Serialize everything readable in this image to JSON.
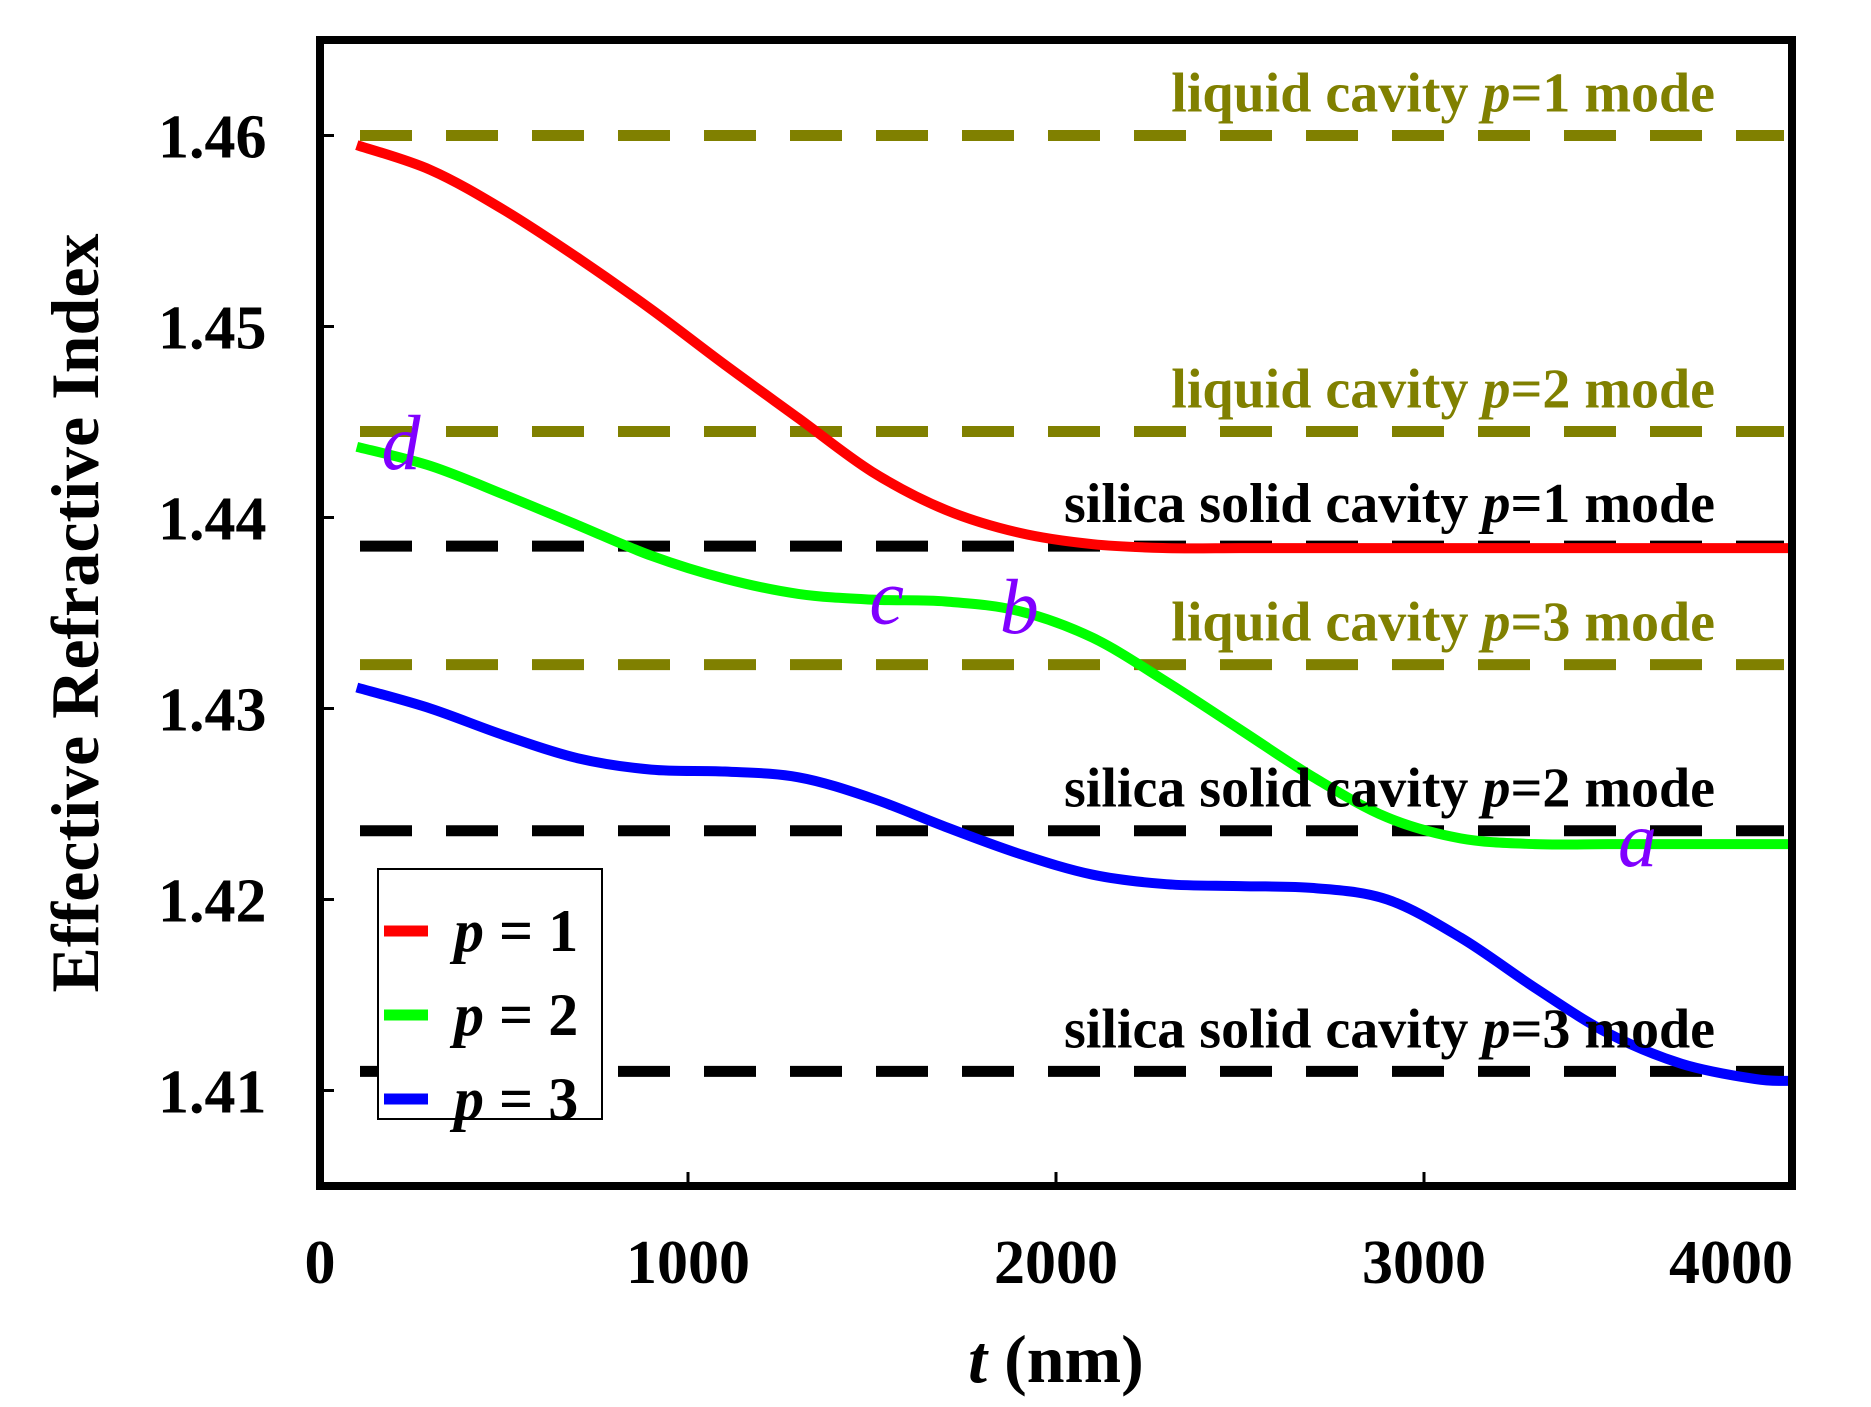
{
  "chart_data": {
    "type": "line",
    "xlabel_var": "t",
    "xlabel_unit": " (nm)",
    "ylabel": "Effective Refractive Index",
    "xlim": [
      0,
      4000
    ],
    "ylim": [
      1.405,
      1.465
    ],
    "x_ticks": [
      0,
      1000,
      2000,
      3000,
      4000
    ],
    "x_tick_labels": [
      "0",
      "1000",
      "2000",
      "3000",
      "4000"
    ],
    "y_ticks": [
      1.41,
      1.42,
      1.43,
      1.44,
      1.45,
      1.46
    ],
    "y_tick_labels": [
      "1.41",
      "1.42",
      "1.43",
      "1.44",
      "1.45",
      "1.46"
    ],
    "series": [
      {
        "name": "p = 1",
        "var": "p",
        "rel": " = 1",
        "color": "#ff0000",
        "x": [
          100,
          300,
          500,
          700,
          900,
          1100,
          1300,
          1500,
          1700,
          1900,
          2100,
          2300,
          2500,
          2700,
          2900,
          3100,
          3300,
          3500,
          3700,
          3900,
          4000
        ],
        "y": [
          1.4595,
          1.4582,
          1.4561,
          1.4536,
          1.4509,
          1.448,
          1.4452,
          1.4424,
          1.4404,
          1.4392,
          1.4386,
          1.4384,
          1.4384,
          1.4384,
          1.4384,
          1.4384,
          1.4384,
          1.4384,
          1.4384,
          1.4384,
          1.4384
        ]
      },
      {
        "name": "p = 2",
        "var": "p",
        "rel": " = 2",
        "color": "#00ff00",
        "x": [
          100,
          300,
          500,
          700,
          900,
          1100,
          1300,
          1500,
          1700,
          1900,
          2100,
          2300,
          2500,
          2700,
          2900,
          3100,
          3300,
          3500,
          3700,
          3900,
          4000
        ],
        "y": [
          1.4437,
          1.4427,
          1.4412,
          1.4396,
          1.438,
          1.4368,
          1.436,
          1.4357,
          1.4356,
          1.4351,
          1.4337,
          1.4314,
          1.4289,
          1.4264,
          1.4243,
          1.4232,
          1.4229,
          1.4229,
          1.4229,
          1.4229,
          1.4229
        ]
      },
      {
        "name": "p = 3",
        "var": "p",
        "rel": " = 3",
        "color": "#0000ff",
        "x": [
          100,
          300,
          500,
          700,
          900,
          1100,
          1300,
          1500,
          1700,
          1900,
          2100,
          2300,
          2500,
          2700,
          2900,
          3100,
          3300,
          3500,
          3700,
          3900,
          4000
        ],
        "y": [
          1.4311,
          1.43,
          1.4286,
          1.4274,
          1.4268,
          1.4267,
          1.4264,
          1.4253,
          1.4238,
          1.4224,
          1.4213,
          1.4208,
          1.4207,
          1.4206,
          1.42,
          1.418,
          1.4154,
          1.413,
          1.4114,
          1.4106,
          1.4105
        ]
      }
    ],
    "reference_lines": [
      {
        "y": 1.46,
        "color": "#808000",
        "label_a": "liquid cavity ",
        "label_var": "p",
        "label_b": "=1 mode"
      },
      {
        "y": 1.4445,
        "color": "#808000",
        "label_a": "liquid cavity ",
        "label_var": "p",
        "label_b": "=2 mode"
      },
      {
        "y": 1.4323,
        "color": "#808000",
        "label_a": "liquid cavity ",
        "label_var": "p",
        "label_b": "=3 mode"
      },
      {
        "y": 1.4385,
        "color": "#000000",
        "label_a": "silica solid cavity ",
        "label_var": "p",
        "label_b": "=1 mode"
      },
      {
        "y": 1.4236,
        "color": "#000000",
        "label_a": "silica solid cavity ",
        "label_var": "p",
        "label_b": "=2 mode"
      },
      {
        "y": 1.411,
        "color": "#000000",
        "label_a": "silica solid cavity ",
        "label_var": "p",
        "label_b": "=3 mode"
      }
    ],
    "point_labels": [
      {
        "text": "d",
        "x": 220,
        "y": 1.4437
      },
      {
        "text": "c",
        "x": 1540,
        "y": 1.4356
      },
      {
        "text": "b",
        "x": 1900,
        "y": 1.4351
      },
      {
        "text": "a",
        "x": 3580,
        "y": 1.4229
      }
    ],
    "point_label_color": "#8000ff",
    "legend_position": "bottom-left"
  }
}
